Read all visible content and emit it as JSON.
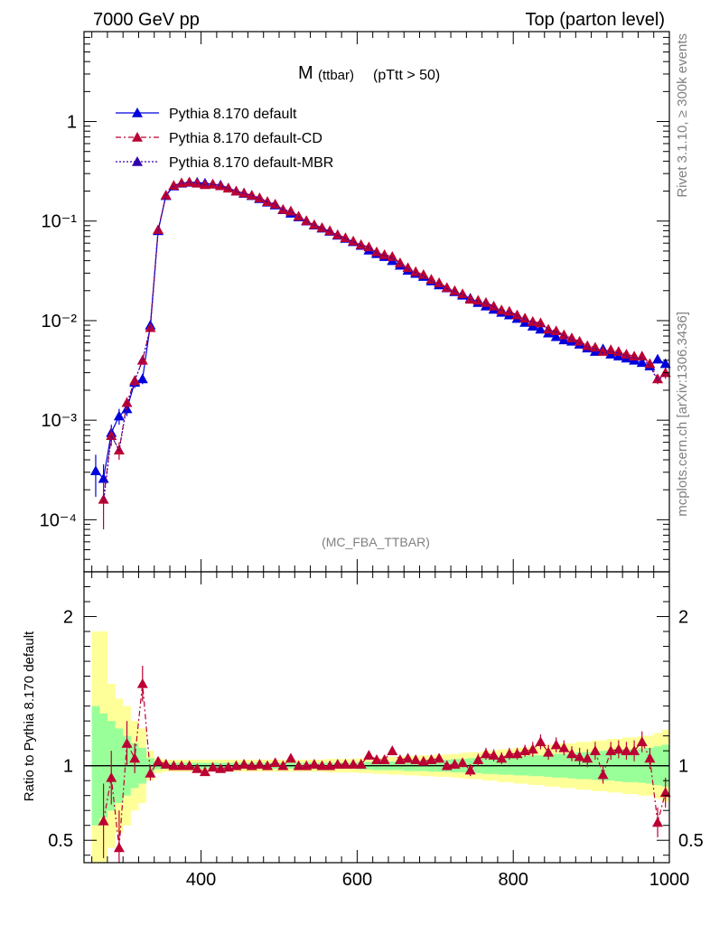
{
  "header": {
    "left": "7000 GeV pp",
    "right": "Top (parton level)"
  },
  "side_text": {
    "rivet": "Rivet 3.1.10, ≥ 300k events",
    "mcplots": "mcplots.cern.ch [arXiv:1306.3436]"
  },
  "plot_title": {
    "main": "M",
    "sub": "(ttbar)",
    "cut": "(pTtt > 50)"
  },
  "analysis_label": "(MC_FBA_TTBAR)",
  "ratio_ylabel": "Ratio to Pythia 8.170 default",
  "legend": [
    {
      "label": "Pythia 8.170 default",
      "color": "#0000dd",
      "dash": "solid"
    },
    {
      "label": "Pythia 8.170 default-CD",
      "color": "#bb0033",
      "dash": "dashdot"
    },
    {
      "label": "Pythia 8.170 default-MBR",
      "color": "#3300aa",
      "dash": "dotted"
    }
  ],
  "chart_data": {
    "type": "line",
    "xlim": [
      250,
      1000
    ],
    "ylim_main": [
      3e-05,
      8
    ],
    "ylim_ratio": [
      0.35,
      2.3
    ],
    "yscale_main": "log",
    "main_yticks": [
      "1",
      "10⁻¹",
      "10⁻²",
      "10⁻³",
      "10⁻⁴"
    ],
    "main_ytick_values": [
      1,
      0.1,
      0.01,
      0.001,
      0.0001
    ],
    "ratio_yticks": [
      "2",
      "1",
      "0.5"
    ],
    "ratio_ytick_values": [
      2,
      1,
      0.5
    ],
    "xticks": [
      "400",
      "600",
      "800",
      "1000"
    ],
    "xtick_values": [
      400,
      600,
      800,
      1000
    ],
    "x": [
      265,
      275,
      285,
      295,
      305,
      315,
      325,
      335,
      345,
      355,
      365,
      375,
      385,
      395,
      405,
      415,
      425,
      435,
      445,
      455,
      465,
      475,
      485,
      495,
      505,
      515,
      525,
      535,
      545,
      555,
      565,
      575,
      585,
      595,
      605,
      615,
      625,
      635,
      645,
      655,
      665,
      675,
      685,
      695,
      705,
      715,
      725,
      735,
      745,
      755,
      765,
      775,
      785,
      795,
      805,
      815,
      825,
      835,
      845,
      855,
      865,
      875,
      885,
      895,
      905,
      915,
      925,
      935,
      945,
      955,
      965,
      975,
      985,
      995
    ],
    "series": [
      {
        "name": "Pythia 8.170 default",
        "color": "#0000dd",
        "values": [
          0.00031,
          0.00026,
          0.00075,
          0.0011,
          0.0013,
          0.0024,
          0.0026,
          0.009,
          0.08,
          0.18,
          0.225,
          0.24,
          0.245,
          0.245,
          0.24,
          0.235,
          0.23,
          0.215,
          0.2,
          0.19,
          0.18,
          0.168,
          0.155,
          0.145,
          0.13,
          0.12,
          0.11,
          0.1,
          0.091,
          0.085,
          0.079,
          0.072,
          0.067,
          0.062,
          0.057,
          0.051,
          0.047,
          0.044,
          0.04,
          0.036,
          0.032,
          0.0298,
          0.0278,
          0.025,
          0.0228,
          0.0213,
          0.0195,
          0.018,
          0.0168,
          0.0152,
          0.014,
          0.013,
          0.0121,
          0.0114,
          0.0105,
          0.0096,
          0.0088,
          0.0082,
          0.0075,
          0.0069,
          0.0064,
          0.0062,
          0.0058,
          0.0053,
          0.0049,
          0.0052,
          0.0046,
          0.0044,
          0.0042,
          0.004,
          0.0038,
          0.0035,
          0.0041,
          0.0037
        ],
        "err": [
          0.00014,
          0.0001,
          0.00015,
          0.0002,
          0.0002,
          0.0003,
          0.0003,
          0.0006,
          0.002,
          0.003,
          0.004,
          0.004,
          0.004,
          0.004,
          0.004,
          0.004,
          0.004,
          0.003,
          0.003,
          0.003,
          0.003,
          0.003,
          0.003,
          0.003,
          0.002,
          0.002,
          0.002,
          0.002,
          0.002,
          0.002,
          0.002,
          0.001,
          0.001,
          0.001,
          0.001,
          0.001,
          0.001,
          0.001,
          0.001,
          0.001,
          0.0008,
          0.0007,
          0.0007,
          0.0006,
          0.0006,
          0.0006,
          0.0005,
          0.0005,
          0.0005,
          0.0004,
          0.0004,
          0.0004,
          0.0004,
          0.0004,
          0.0003,
          0.0003,
          0.0003,
          0.0003,
          0.0003,
          0.0003,
          0.0003,
          0.0003,
          0.0003,
          0.0003,
          0.0003,
          0.0003,
          0.0003,
          0.0003,
          0.0003,
          0.0003,
          0.0003,
          0.0003,
          0.0004,
          0.0004
        ]
      },
      {
        "name": "Pythia 8.170 default-CD",
        "color": "#bb0033",
        "values": [
          null,
          0.00016,
          0.0007,
          0.0005,
          0.0015,
          0.0025,
          0.004,
          0.0085,
          0.082,
          0.182,
          0.228,
          0.242,
          0.247,
          0.24,
          0.232,
          0.235,
          0.226,
          0.214,
          0.2,
          0.192,
          0.182,
          0.171,
          0.157,
          0.148,
          0.131,
          0.126,
          0.112,
          0.101,
          0.092,
          0.086,
          0.08,
          0.073,
          0.068,
          0.063,
          0.058,
          0.055,
          0.049,
          0.046,
          0.044,
          0.038,
          0.034,
          0.031,
          0.029,
          0.026,
          0.024,
          0.0215,
          0.02,
          0.0186,
          0.0164,
          0.016,
          0.0152,
          0.014,
          0.0128,
          0.0124,
          0.0114,
          0.0106,
          0.0098,
          0.0095,
          0.0082,
          0.0079,
          0.0072,
          0.0067,
          0.0062,
          0.0056,
          0.0054,
          0.0049,
          0.0051,
          0.0049,
          0.0046,
          0.0044,
          0.0044,
          0.0037,
          0.0026,
          0.003
        ],
        "err": [
          null,
          8e-05,
          0.00015,
          0.0001,
          0.0002,
          0.0003,
          0.0004,
          0.0006,
          0.002,
          0.003,
          0.004,
          0.004,
          0.004,
          0.004,
          0.004,
          0.004,
          0.004,
          0.003,
          0.003,
          0.003,
          0.003,
          0.003,
          0.003,
          0.003,
          0.002,
          0.002,
          0.002,
          0.002,
          0.002,
          0.002,
          0.002,
          0.001,
          0.001,
          0.001,
          0.001,
          0.001,
          0.001,
          0.001,
          0.001,
          0.001,
          0.0008,
          0.0007,
          0.0007,
          0.0006,
          0.0006,
          0.0006,
          0.0005,
          0.0005,
          0.0005,
          0.0004,
          0.0004,
          0.0004,
          0.0004,
          0.0004,
          0.0003,
          0.0003,
          0.0003,
          0.0003,
          0.0003,
          0.0003,
          0.0003,
          0.0003,
          0.0003,
          0.0003,
          0.0003,
          0.0003,
          0.0003,
          0.0003,
          0.0003,
          0.0003,
          0.0003,
          0.0003,
          0.0003,
          0.0004
        ]
      },
      {
        "name": "Pythia 8.170 default-MBR",
        "color": "#3300aa",
        "values": [
          null,
          0.00015,
          0.0007,
          0.0005,
          0.0014,
          0.0025,
          0.004,
          0.0085,
          0.081,
          0.181,
          0.227,
          0.241,
          0.246,
          0.239,
          0.231,
          0.234,
          0.225,
          0.213,
          0.199,
          0.191,
          0.181,
          0.17,
          0.156,
          0.147,
          0.13,
          0.125,
          0.111,
          0.1,
          0.091,
          0.085,
          0.079,
          0.072,
          0.067,
          0.062,
          0.057,
          0.054,
          0.048,
          0.045,
          0.043,
          0.037,
          0.033,
          0.03,
          0.028,
          0.025,
          0.0235,
          0.021,
          0.0197,
          0.0183,
          0.0162,
          0.0158,
          0.015,
          0.0138,
          0.0126,
          0.0122,
          0.0112,
          0.0104,
          0.0096,
          0.0093,
          0.008,
          0.0077,
          0.007,
          0.0065,
          0.006,
          0.0054,
          0.0052,
          0.0047,
          0.0049,
          0.0047,
          0.0044,
          0.0042,
          0.0042,
          0.0035,
          0.0025,
          0.0029
        ]
      }
    ],
    "ratio_values": [
      null,
      0.63,
      0.92,
      0.45,
      1.15,
      1.05,
      1.55,
      0.95,
      1.03,
      1.01,
      1.0,
      1.0,
      1.0,
      0.98,
      0.96,
      0.99,
      0.98,
      0.99,
      1.0,
      1.01,
      1.0,
      1.01,
      1.0,
      1.02,
      1.0,
      1.05,
      1.0,
      1.0,
      1.01,
      1.0,
      1.0,
      1.01,
      1.01,
      1.01,
      1.01,
      1.07,
      1.04,
      1.04,
      1.1,
      1.04,
      1.05,
      1.04,
      1.03,
      1.04,
      1.05,
      1.0,
      1.01,
      1.02,
      0.97,
      1.04,
      1.08,
      1.07,
      1.05,
      1.08,
      1.08,
      1.1,
      1.11,
      1.16,
      1.09,
      1.14,
      1.12,
      1.08,
      1.06,
      1.05,
      1.1,
      0.94,
      1.1,
      1.11,
      1.1,
      1.1,
      1.16,
      1.05,
      0.62,
      0.82
    ],
    "ratio_err": [
      null,
      0.25,
      0.18,
      0.25,
      0.15,
      0.1,
      0.12,
      0.05,
      0.02,
      0.02,
      0.02,
      0.02,
      0.02,
      0.02,
      0.02,
      0.02,
      0.02,
      0.02,
      0.02,
      0.02,
      0.02,
      0.02,
      0.02,
      0.02,
      0.02,
      0.02,
      0.02,
      0.02,
      0.02,
      0.02,
      0.02,
      0.02,
      0.02,
      0.02,
      0.03,
      0.03,
      0.03,
      0.03,
      0.03,
      0.03,
      0.03,
      0.03,
      0.03,
      0.03,
      0.03,
      0.03,
      0.03,
      0.03,
      0.04,
      0.04,
      0.04,
      0.04,
      0.04,
      0.04,
      0.04,
      0.04,
      0.05,
      0.05,
      0.05,
      0.05,
      0.05,
      0.05,
      0.06,
      0.06,
      0.06,
      0.06,
      0.06,
      0.06,
      0.06,
      0.07,
      0.07,
      0.07,
      0.1,
      0.1
    ],
    "band_green": [
      0.4,
      0.35,
      0.3,
      0.25,
      0.2,
      0.15,
      0.12,
      0.05,
      0.025,
      0.02,
      0.02,
      0.02,
      0.02,
      0.02,
      0.02,
      0.02,
      0.02,
      0.02,
      0.02,
      0.02,
      0.02,
      0.02,
      0.02,
      0.02,
      0.02,
      0.02,
      0.02,
      0.02,
      0.02,
      0.02,
      0.02,
      0.02,
      0.02,
      0.02,
      0.025,
      0.025,
      0.03,
      0.03,
      0.03,
      0.03,
      0.035,
      0.035,
      0.035,
      0.04,
      0.04,
      0.04,
      0.045,
      0.045,
      0.05,
      0.05,
      0.055,
      0.055,
      0.06,
      0.06,
      0.065,
      0.065,
      0.07,
      0.07,
      0.075,
      0.08,
      0.08,
      0.085,
      0.09,
      0.09,
      0.095,
      0.1,
      0.1,
      0.105,
      0.11,
      0.11,
      0.115,
      0.12,
      0.13,
      0.14
    ],
    "band_yellow": [
      0.9,
      0.9,
      0.55,
      0.45,
      0.4,
      0.3,
      0.25,
      0.1,
      0.05,
      0.04,
      0.04,
      0.04,
      0.04,
      0.04,
      0.04,
      0.04,
      0.04,
      0.04,
      0.04,
      0.04,
      0.04,
      0.04,
      0.04,
      0.04,
      0.04,
      0.04,
      0.04,
      0.04,
      0.04,
      0.04,
      0.045,
      0.045,
      0.045,
      0.045,
      0.05,
      0.05,
      0.055,
      0.055,
      0.06,
      0.06,
      0.065,
      0.065,
      0.07,
      0.07,
      0.075,
      0.075,
      0.08,
      0.085,
      0.09,
      0.09,
      0.1,
      0.1,
      0.11,
      0.11,
      0.12,
      0.12,
      0.13,
      0.13,
      0.14,
      0.14,
      0.15,
      0.15,
      0.16,
      0.16,
      0.17,
      0.17,
      0.18,
      0.18,
      0.19,
      0.19,
      0.2,
      0.2,
      0.22,
      0.24
    ]
  }
}
